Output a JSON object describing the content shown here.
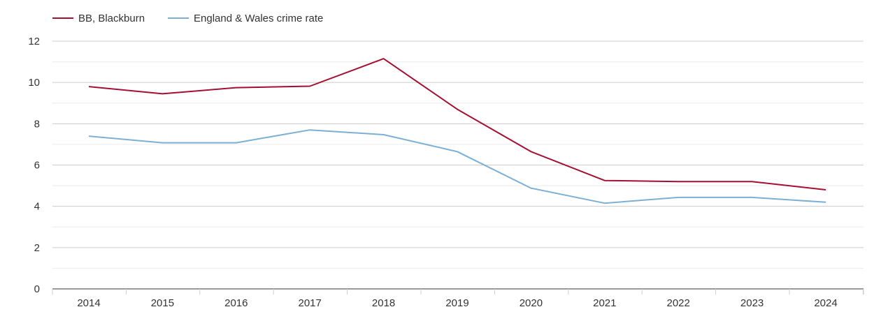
{
  "chart_data": {
    "type": "line",
    "categories": [
      "2014",
      "2015",
      "2016",
      "2017",
      "2018",
      "2019",
      "2020",
      "2021",
      "2022",
      "2023",
      "2024"
    ],
    "series": [
      {
        "name": "BB, Blackburn",
        "color": "#a50f31",
        "values": [
          9.8,
          9.45,
          9.75,
          9.82,
          11.15,
          8.7,
          6.65,
          5.25,
          5.2,
          5.2,
          4.8
        ]
      },
      {
        "name": "England & Wales crime rate",
        "color": "#7bafd4",
        "values": [
          7.4,
          7.08,
          7.08,
          7.7,
          7.47,
          6.65,
          4.88,
          4.15,
          4.43,
          4.43,
          4.2
        ]
      }
    ],
    "ylim": [
      0,
      12
    ],
    "yticks": [
      0,
      2,
      4,
      6,
      8,
      10,
      12
    ],
    "grid": true,
    "legend": "top-left",
    "xlabel": "",
    "ylabel": "",
    "title": ""
  }
}
